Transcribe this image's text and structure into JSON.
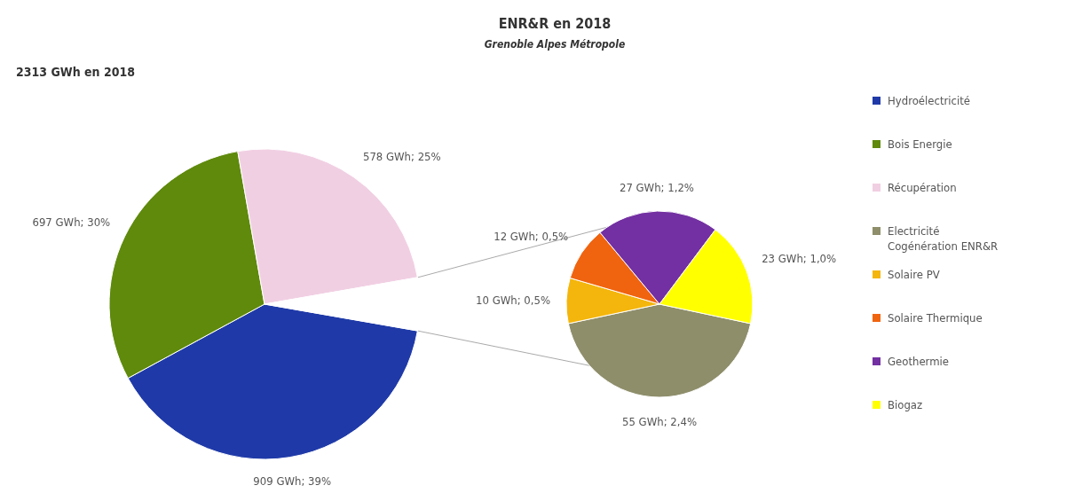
{
  "chart_data": [
    {
      "type": "pie",
      "title": "ENR&R  en 2018",
      "subtitle": "Grenoble Alpes Métropole",
      "annotations": [
        "2313  GWh en 2018"
      ],
      "categories": [
        "Hydroélectricité",
        "Bois Energie",
        "Récupération",
        null
      ],
      "values": [
        909,
        697,
        578,
        127
      ],
      "colors": [
        "#1f3aa8",
        "#5f8a0c",
        "#f1cfe3",
        "#ffffff"
      ],
      "value_labels": [
        "909 GWh; 39%",
        "697 GWh; 30%",
        "578 GWh; 25%",
        null
      ],
      "legend": "right"
    },
    {
      "type": "pie",
      "categories": [
        "Electricité Cogénération ENR&R",
        "Solaire PV",
        "Solaire Thermique",
        "Geothermie",
        "Biogaz"
      ],
      "values": [
        55,
        10,
        12,
        27,
        23
      ],
      "colors": [
        "#8e8e6b",
        "#f4b60c",
        "#f0640f",
        "#7330a2",
        "#ffff00"
      ],
      "value_labels": [
        "55 GWh; 2,4%",
        "10 GWh; 0,5%",
        "12 GWh; 0,5%",
        "27 GWh; 1,2%",
        "23 GWh; 1,0%"
      ],
      "legend": "right"
    }
  ]
}
